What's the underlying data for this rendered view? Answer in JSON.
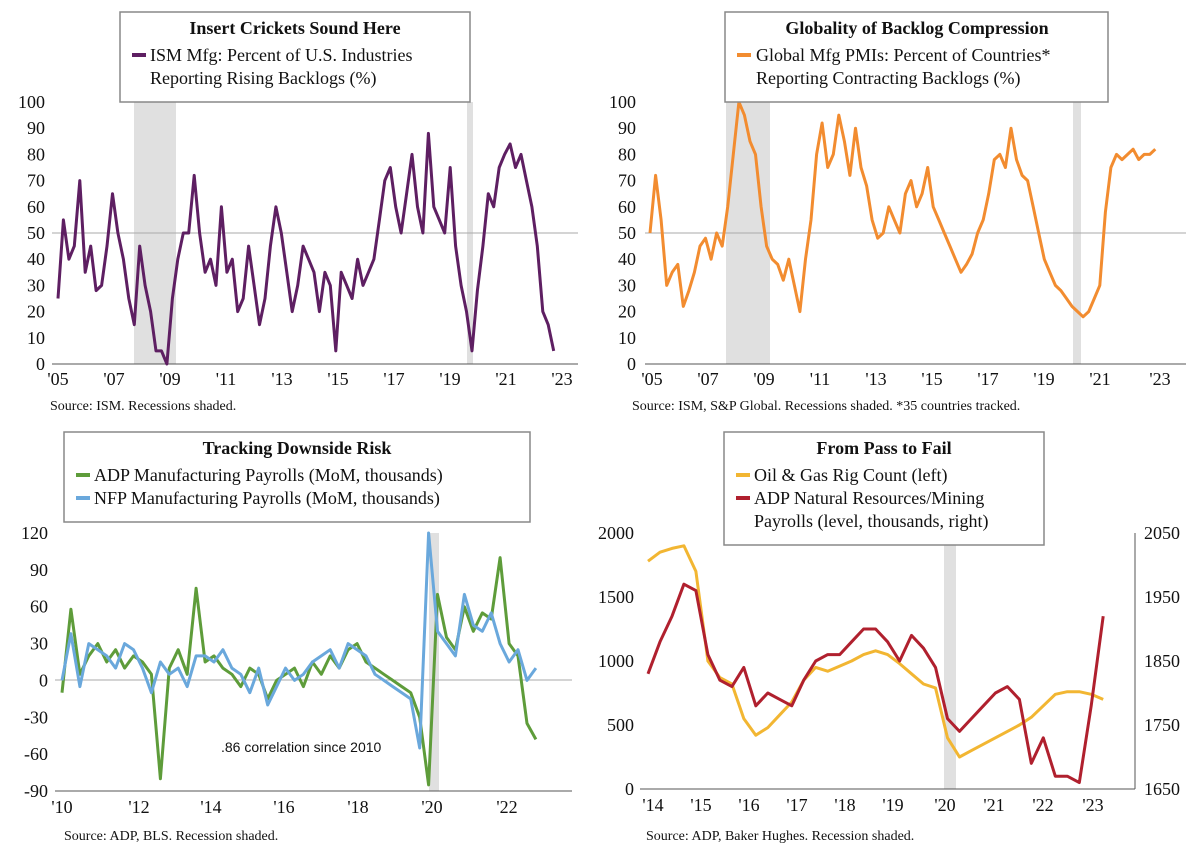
{
  "chart_data": [
    {
      "type": "line",
      "title": "Insert Crickets Sound Here",
      "legend": [
        "ISM Mfg: Percent of U.S. Industries",
        "Reporting Rising Backlogs (%)"
      ],
      "source": "Source: ISM. Recessions shaded.",
      "x_ticks": [
        "'05",
        "'07",
        "'09",
        "'11",
        "'13",
        "'15",
        "'17",
        "'19",
        "'21",
        "'23"
      ],
      "y_ticks": [
        "0",
        "10",
        "20",
        "30",
        "40",
        "50",
        "60",
        "70",
        "80",
        "90",
        "100"
      ],
      "xlim": [
        2005,
        2023.8
      ],
      "ylim": [
        0,
        100
      ],
      "reference_line": 50,
      "recessions": [
        [
          2007.9,
          2009.4
        ],
        [
          2020.1,
          2020.3
        ]
      ],
      "color": "#5e1f62",
      "series": [
        {
          "x": [
            2005.0,
            2005.2,
            2005.4,
            2005.6,
            2005.8,
            2006.0,
            2006.2,
            2006.4,
            2006.6,
            2006.8,
            2007.0,
            2007.2,
            2007.4,
            2007.6,
            2007.8,
            2008.0,
            2008.2,
            2008.4,
            2008.6,
            2008.8,
            2009.0,
            2009.2,
            2009.4,
            2009.6,
            2009.8,
            2010.0,
            2010.2,
            2010.4,
            2010.6,
            2010.8,
            2011.0,
            2011.2,
            2011.4,
            2011.6,
            2011.8,
            2012.0,
            2012.2,
            2012.4,
            2012.6,
            2012.8,
            2013.0,
            2013.2,
            2013.4,
            2013.6,
            2013.8,
            2014.0,
            2014.2,
            2014.4,
            2014.6,
            2014.8,
            2015.0,
            2015.2,
            2015.4,
            2015.6,
            2015.8,
            2016.0,
            2016.2,
            2016.4,
            2016.6,
            2016.8,
            2017.0,
            2017.2,
            2017.4,
            2017.6,
            2017.8,
            2018.0,
            2018.2,
            2018.4,
            2018.6,
            2018.8,
            2019.0,
            2019.2,
            2019.4,
            2019.6,
            2019.8,
            2020.0,
            2020.2,
            2020.4,
            2020.6,
            2020.8,
            2021.0,
            2021.2,
            2021.4,
            2021.6,
            2021.8,
            2022.0,
            2022.2,
            2022.4,
            2022.6,
            2022.8,
            2023.0,
            2023.2
          ],
          "values": [
            25,
            55,
            40,
            45,
            70,
            35,
            45,
            28,
            30,
            45,
            65,
            50,
            40,
            25,
            15,
            45,
            30,
            20,
            5,
            5,
            0,
            25,
            40,
            50,
            50,
            72,
            50,
            35,
            40,
            30,
            60,
            35,
            40,
            20,
            25,
            45,
            30,
            15,
            25,
            45,
            60,
            50,
            35,
            20,
            30,
            45,
            40,
            35,
            20,
            35,
            30,
            5,
            35,
            30,
            25,
            40,
            30,
            35,
            40,
            55,
            70,
            75,
            60,
            50,
            65,
            80,
            60,
            50,
            88,
            60,
            55,
            50,
            75,
            45,
            30,
            20,
            5,
            28,
            45,
            65,
            60,
            75,
            80,
            84,
            75,
            80,
            70,
            60,
            45,
            20,
            15,
            5
          ]
        }
      ]
    },
    {
      "type": "line",
      "title": "Globality of Backlog Compression",
      "legend": [
        "Global Mfg PMIs: Percent of Countries*",
        "Reporting Contracting Backlogs (%)"
      ],
      "source": "Source: ISM, S&P Global. Recessions shaded. *35 countries tracked.",
      "x_ticks": [
        "'05",
        "'07",
        "'09",
        "'11",
        "'13",
        "'15",
        "'17",
        "'19",
        "'21",
        "'23"
      ],
      "y_ticks": [
        "0",
        "10",
        "20",
        "30",
        "40",
        "50",
        "60",
        "70",
        "80",
        "90",
        "100"
      ],
      "xlim": [
        2005,
        2023.8
      ],
      "ylim": [
        0,
        100
      ],
      "reference_line": 50,
      "recessions": [
        [
          2007.9,
          2009.4
        ],
        [
          2020.0,
          2020.3
        ]
      ],
      "color": "#f28c30",
      "series": [
        {
          "x": [
            2005.0,
            2005.2,
            2005.4,
            2005.6,
            2005.8,
            2006.0,
            2006.2,
            2006.4,
            2006.6,
            2006.8,
            2007.0,
            2007.2,
            2007.4,
            2007.6,
            2007.8,
            2008.0,
            2008.2,
            2008.4,
            2008.6,
            2008.8,
            2009.0,
            2009.2,
            2009.4,
            2009.6,
            2009.8,
            2010.0,
            2010.2,
            2010.4,
            2010.6,
            2010.8,
            2011.0,
            2011.2,
            2011.4,
            2011.6,
            2011.8,
            2012.0,
            2012.2,
            2012.4,
            2012.6,
            2012.8,
            2013.0,
            2013.2,
            2013.4,
            2013.6,
            2013.8,
            2014.0,
            2014.2,
            2014.4,
            2014.6,
            2014.8,
            2015.0,
            2015.2,
            2015.4,
            2015.6,
            2015.8,
            2016.0,
            2016.2,
            2016.4,
            2016.6,
            2016.8,
            2017.0,
            2017.2,
            2017.4,
            2017.6,
            2017.8,
            2018.0,
            2018.2,
            2018.4,
            2018.6,
            2018.8,
            2019.0,
            2019.2,
            2019.4,
            2019.6,
            2019.8,
            2020.0,
            2020.2,
            2020.4,
            2020.6,
            2020.8,
            2021.0,
            2021.2,
            2021.4,
            2021.6,
            2021.8,
            2022.0,
            2022.2,
            2022.4,
            2022.6,
            2022.8,
            2023.0,
            2023.2
          ],
          "values": [
            50,
            72,
            55,
            30,
            35,
            38,
            22,
            28,
            35,
            45,
            48,
            40,
            50,
            45,
            60,
            80,
            100,
            95,
            85,
            80,
            60,
            45,
            40,
            38,
            32,
            40,
            30,
            20,
            40,
            55,
            80,
            92,
            75,
            80,
            95,
            85,
            72,
            90,
            75,
            68,
            55,
            48,
            50,
            60,
            55,
            50,
            65,
            70,
            60,
            65,
            75,
            60,
            55,
            50,
            45,
            40,
            35,
            38,
            42,
            50,
            55,
            65,
            78,
            80,
            75,
            90,
            78,
            72,
            70,
            60,
            50,
            40,
            35,
            30,
            28,
            25,
            22,
            20,
            18,
            20,
            25,
            30,
            58,
            75,
            80,
            78,
            80,
            82,
            78,
            80,
            80,
            82
          ]
        }
      ]
    },
    {
      "type": "line",
      "title": "Tracking Downside Risk",
      "annotation": ".86 correlation since 2010",
      "source": "Source: ADP, BLS. Recession shaded.",
      "x_ticks": [
        "'10",
        "'12",
        "'14",
        "'16",
        "'18",
        "'20",
        "'22"
      ],
      "y_ticks": [
        "-90",
        "-60",
        "-30",
        "0",
        "30",
        "60",
        "90",
        "120"
      ],
      "xlim": [
        2010,
        2023.7
      ],
      "ylim": [
        -90,
        120
      ],
      "recessions": [
        [
          2019.9,
          2020.3
        ]
      ],
      "series": [
        {
          "name": "ADP Manufacturing Payrolls (MoM, thousands)",
          "color": "#5e9c3a",
          "x": [
            2010.0,
            2010.25,
            2010.5,
            2010.75,
            2011.0,
            2011.25,
            2011.5,
            2011.75,
            2012.0,
            2012.25,
            2012.5,
            2012.75,
            2013.0,
            2013.25,
            2013.5,
            2013.75,
            2014.0,
            2014.25,
            2014.5,
            2014.75,
            2015.0,
            2015.25,
            2015.5,
            2015.75,
            2016.0,
            2016.25,
            2016.5,
            2016.75,
            2017.0,
            2017.25,
            2017.5,
            2017.75,
            2018.0,
            2018.25,
            2018.5,
            2018.75,
            2019.0,
            2019.25,
            2019.5,
            2019.75,
            2020.0,
            2020.25,
            2020.5,
            2020.75,
            2021.0,
            2021.25,
            2021.5,
            2021.75,
            2022.0,
            2022.25,
            2022.5,
            2022.75,
            2023.0,
            2023.25
          ],
          "values": [
            -10,
            58,
            5,
            20,
            30,
            15,
            25,
            10,
            20,
            15,
            5,
            -80,
            10,
            25,
            5,
            75,
            15,
            20,
            10,
            5,
            -5,
            10,
            5,
            -15,
            0,
            5,
            10,
            -5,
            15,
            5,
            20,
            10,
            25,
            30,
            15,
            10,
            5,
            0,
            -5,
            -10,
            -30,
            -85,
            70,
            35,
            25,
            60,
            40,
            55,
            50,
            100,
            30,
            20,
            -35,
            -48
          ]
        },
        {
          "name": "NFP Manufacturing Payrolls (MoM, thousands)",
          "color": "#6aa8dc",
          "x": [
            2010.0,
            2010.25,
            2010.5,
            2010.75,
            2011.0,
            2011.25,
            2011.5,
            2011.75,
            2012.0,
            2012.25,
            2012.5,
            2012.75,
            2013.0,
            2013.25,
            2013.5,
            2013.75,
            2014.0,
            2014.25,
            2014.5,
            2014.75,
            2015.0,
            2015.25,
            2015.5,
            2015.75,
            2016.0,
            2016.25,
            2016.5,
            2016.75,
            2017.0,
            2017.25,
            2017.5,
            2017.75,
            2018.0,
            2018.25,
            2018.5,
            2018.75,
            2019.0,
            2019.25,
            2019.5,
            2019.75,
            2020.0,
            2020.25,
            2020.5,
            2020.75,
            2021.0,
            2021.25,
            2021.5,
            2021.75,
            2022.0,
            2022.25,
            2022.5,
            2022.75,
            2023.0,
            2023.25
          ],
          "values": [
            0,
            38,
            -5,
            30,
            25,
            20,
            10,
            30,
            25,
            10,
            -10,
            15,
            5,
            10,
            -5,
            20,
            20,
            15,
            25,
            10,
            5,
            -10,
            10,
            -20,
            -5,
            10,
            0,
            5,
            15,
            20,
            25,
            10,
            30,
            25,
            20,
            5,
            0,
            -5,
            -10,
            -15,
            -55,
            120,
            40,
            30,
            20,
            70,
            45,
            40,
            55,
            30,
            15,
            25,
            0,
            10
          ]
        }
      ]
    },
    {
      "type": "line",
      "title": "From Pass to Fail",
      "source": "Source: ADP, Baker Hughes. Recession shaded.",
      "x_ticks": [
        "'14",
        "'15",
        "'16",
        "'17",
        "'18",
        "'19",
        "'20",
        "'21",
        "'22",
        "'23"
      ],
      "y_ticks_left": [
        "0",
        "500",
        "1000",
        "1500",
        "2000"
      ],
      "y_ticks_right": [
        "1650",
        "1750",
        "1850",
        "1950",
        "2050"
      ],
      "xlim": [
        2014,
        2023.6
      ],
      "ylim_left": [
        0,
        2000
      ],
      "ylim_right": [
        1650,
        2050
      ],
      "recessions": [
        [
          2020.0,
          2020.2
        ]
      ],
      "series": [
        {
          "name": "Oil & Gas Rig Count (left)",
          "axis": "left",
          "color": "#f2b632",
          "x": [
            2014.0,
            2014.25,
            2014.5,
            2014.75,
            2015.0,
            2015.25,
            2015.5,
            2015.75,
            2016.0,
            2016.25,
            2016.5,
            2016.75,
            2017.0,
            2017.25,
            2017.5,
            2017.75,
            2018.0,
            2018.25,
            2018.5,
            2018.75,
            2019.0,
            2019.25,
            2019.5,
            2019.75,
            2020.0,
            2020.25,
            2020.5,
            2020.75,
            2021.0,
            2021.25,
            2021.5,
            2021.75,
            2022.0,
            2022.25,
            2022.5,
            2022.75,
            2023.0,
            2023.25,
            2023.5
          ],
          "values": [
            1780,
            1850,
            1880,
            1900,
            1700,
            1000,
            870,
            820,
            550,
            420,
            480,
            580,
            680,
            850,
            950,
            920,
            960,
            1000,
            1050,
            1080,
            1050,
            980,
            900,
            820,
            790,
            400,
            250,
            300,
            350,
            400,
            450,
            500,
            560,
            650,
            740,
            760,
            760,
            740,
            700
          ]
        },
        {
          "name": "ADP Natural Resources/Mining Payrolls (level, thousands, right)",
          "axis": "right",
          "color": "#b0202e",
          "x": [
            2014.0,
            2014.25,
            2014.5,
            2014.75,
            2015.0,
            2015.25,
            2015.5,
            2015.75,
            2016.0,
            2016.25,
            2016.5,
            2016.75,
            2017.0,
            2017.25,
            2017.5,
            2017.75,
            2018.0,
            2018.25,
            2018.5,
            2018.75,
            2019.0,
            2019.25,
            2019.5,
            2019.75,
            2020.0,
            2020.25,
            2020.5,
            2020.75,
            2021.0,
            2021.25,
            2021.5,
            2021.75,
            2022.0,
            2022.25,
            2022.5,
            2022.75,
            2023.0,
            2023.25,
            2023.5
          ],
          "values": [
            1830,
            1880,
            1920,
            1970,
            1960,
            1860,
            1820,
            1810,
            1840,
            1780,
            1800,
            1790,
            1780,
            1820,
            1850,
            1860,
            1860,
            1880,
            1900,
            1900,
            1880,
            1850,
            1890,
            1870,
            1840,
            1760,
            1740,
            1760,
            1780,
            1800,
            1810,
            1790,
            1690,
            1730,
            1670,
            1670,
            1660,
            1780,
            1920
          ]
        }
      ]
    }
  ]
}
